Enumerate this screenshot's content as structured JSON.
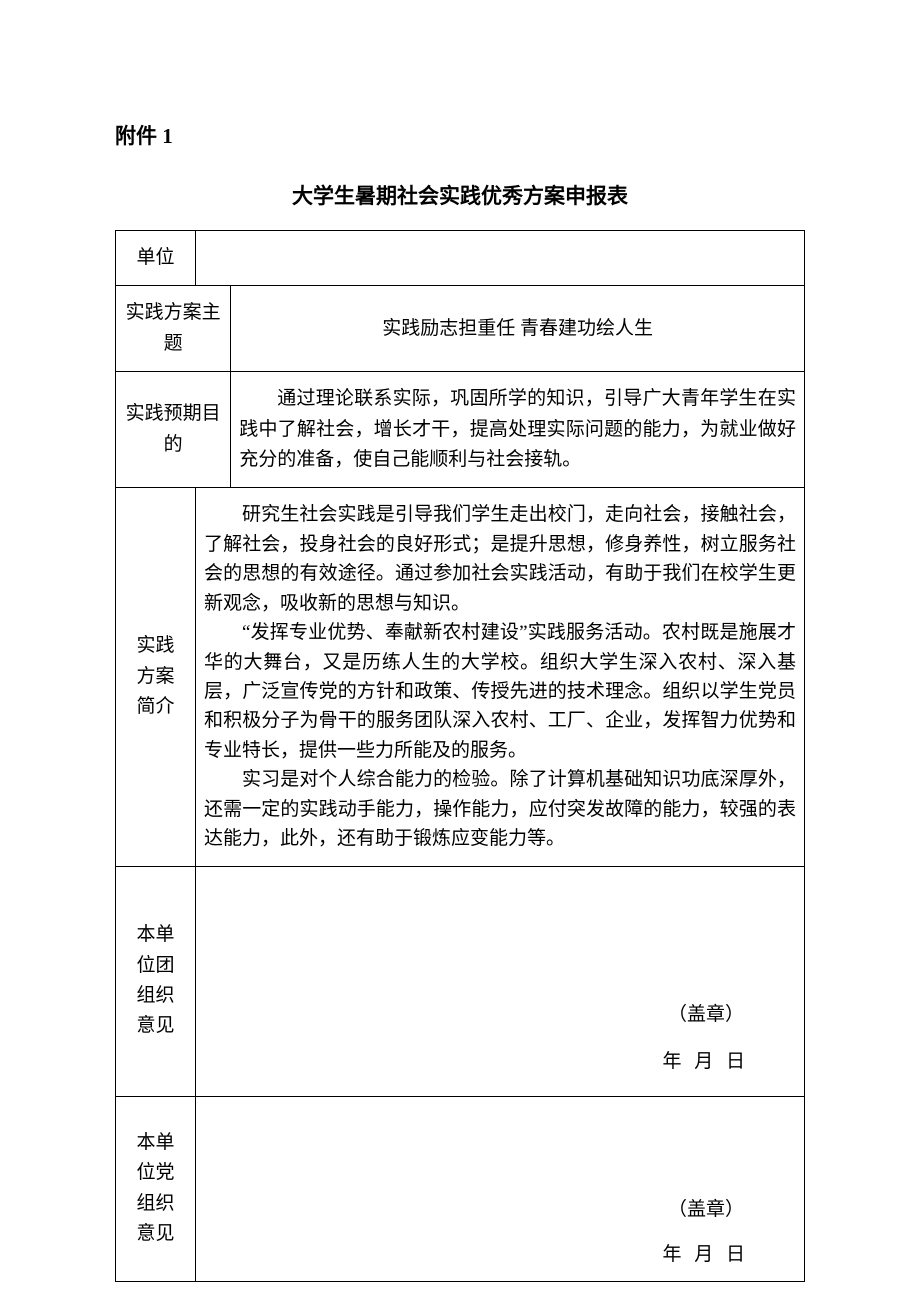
{
  "attachment_label": "附件 1",
  "title": "大学生暑期社会实践优秀方案申报表",
  "colors": {
    "text": "#000000",
    "background": "#ffffff",
    "border": "#000000"
  },
  "typography": {
    "body_font": "SimSun",
    "title_fontsize": 21,
    "body_fontsize": 19,
    "line_height": 1.6
  },
  "rows": {
    "unit": {
      "label": "单位",
      "value": ""
    },
    "theme": {
      "label": "实践方案主题",
      "value": "实践励志担重任  青春建功绘人生"
    },
    "purpose": {
      "label": "实践预期目的",
      "value": "通过理论联系实际，巩固所学的知识，引导广大青年学生在实践中了解社会，增长才干，提高处理实际问题的能力，为就业做好充分的准备，使自己能顺利与社会接轨。"
    },
    "summary": {
      "label_line1": "实践",
      "label_line2": "方案",
      "label_line3": "简介",
      "para1": "研究生社会实践是引导我们学生走出校门，走向社会，接触社会，了解社会，投身社会的良好形式；是提升思想，修身养性，树立服务社会的思想的有效途径。通过参加社会实践活动，有助于我们在校学生更新观念，吸收新的思想与知识。",
      "para2": "“发挥专业优势、奉献新农村建设”实践服务活动。农村既是施展才华的大舞台，又是历练人生的大学校。组织大学生深入农村、深入基层，广泛宣传党的方针和政策、传授先进的技术理念。组织以学生党员和积极分子为骨干的服务团队深入农村、工厂、企业，发挥智力优势和专业特长，提供一些力所能及的服务。",
      "para3": "实习是对个人综合能力的检验。除了计算机基础知识功底深厚外，还需一定的实践动手能力，操作能力，应付突发故障的能力，较强的表达能力，此外，还有助于锻炼应变能力等。"
    },
    "youth_org": {
      "label_line1": "本单",
      "label_line2": "位团",
      "label_line3": "组织",
      "label_line4": "意见",
      "stamp": "（盖章）",
      "date": "年  月   日"
    },
    "party_org": {
      "label_line1": "本单",
      "label_line2": "位党",
      "label_line3": "组织",
      "label_line4": "意见",
      "stamp": "（盖章）",
      "date": "年  月   日"
    }
  }
}
